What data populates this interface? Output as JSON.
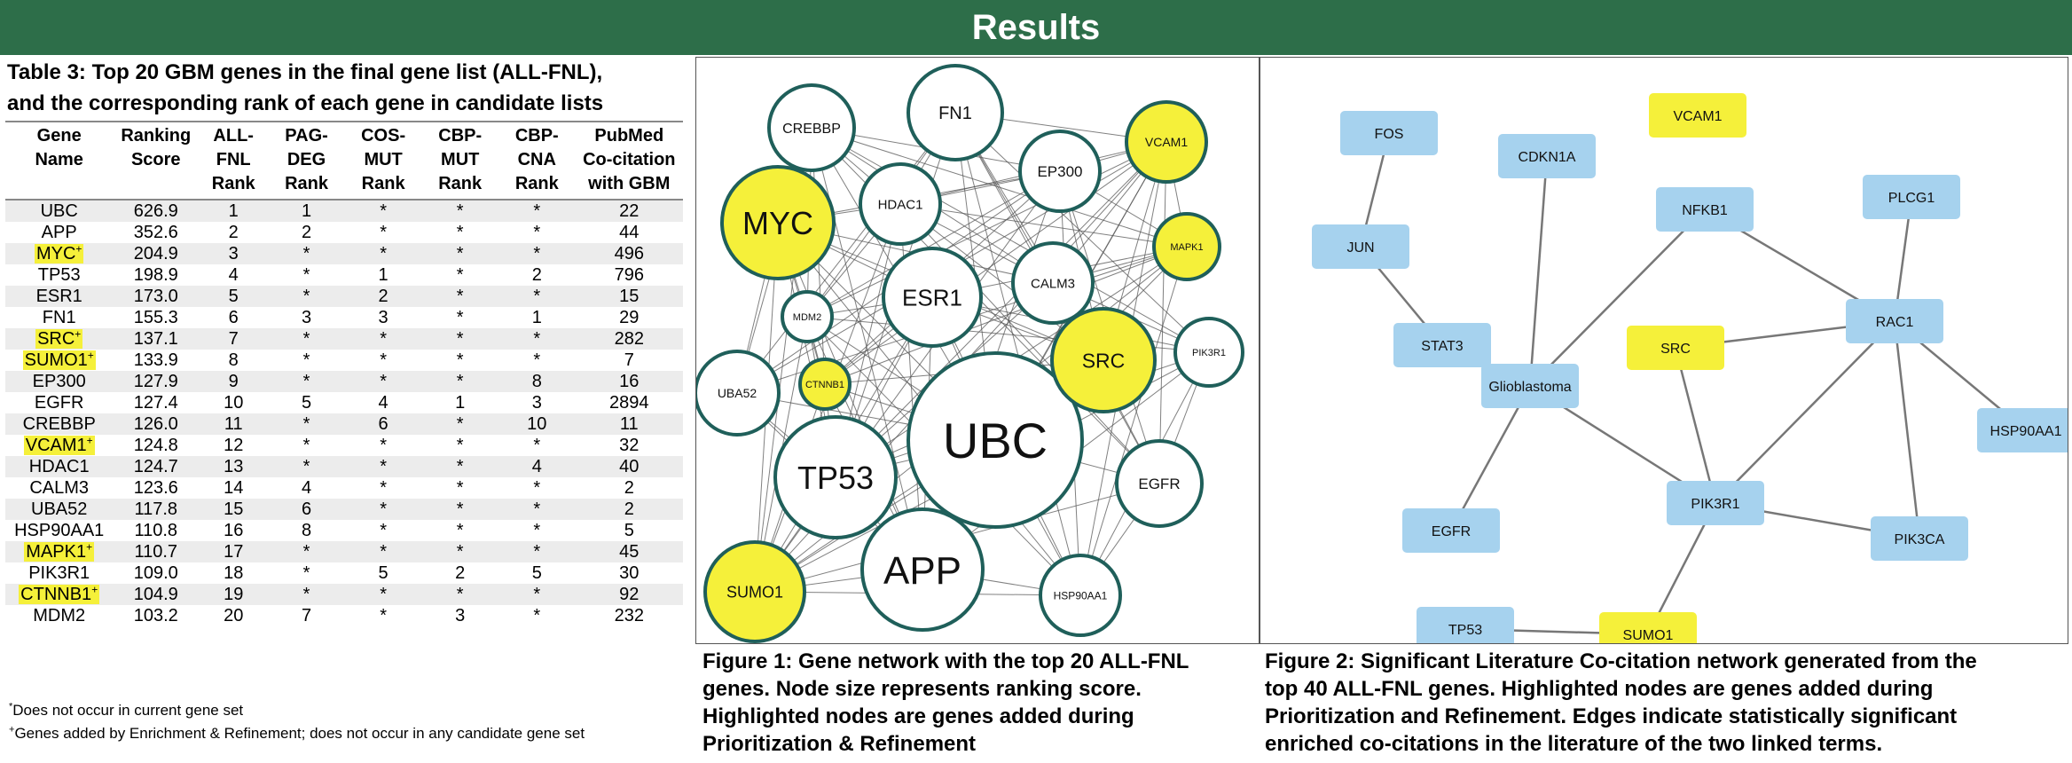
{
  "header": {
    "title": "Results"
  },
  "table": {
    "title_lines": [
      "Table 3: Top 20 GBM genes in the final gene list (ALL-FNL),",
      "and the corresponding rank of each gene in candidate lists"
    ],
    "columns": [
      [
        "Gene",
        "Name"
      ],
      [
        "Ranking",
        "Score"
      ],
      [
        "ALL-",
        "FNL",
        "Rank"
      ],
      [
        "PAG-",
        "DEG",
        "Rank"
      ],
      [
        "COS-",
        "MUT",
        "Rank"
      ],
      [
        "CBP-",
        "MUT",
        "Rank"
      ],
      [
        "CBP-",
        "CNA",
        "Rank"
      ],
      [
        "PubMed",
        "Co-citation",
        "with GBM"
      ]
    ],
    "rows": [
      {
        "gene": "UBC",
        "highlight": false,
        "cells": [
          "626.9",
          "1",
          "1",
          "*",
          "*",
          "*",
          "22"
        ]
      },
      {
        "gene": "APP",
        "highlight": false,
        "cells": [
          "352.6",
          "2",
          "2",
          "*",
          "*",
          "*",
          "44"
        ]
      },
      {
        "gene": "MYC",
        "highlight": true,
        "cells": [
          "204.9",
          "3",
          "*",
          "*",
          "*",
          "*",
          "496"
        ]
      },
      {
        "gene": "TP53",
        "highlight": false,
        "cells": [
          "198.9",
          "4",
          "*",
          "1",
          "*",
          "2",
          "796"
        ]
      },
      {
        "gene": "ESR1",
        "highlight": false,
        "cells": [
          "173.0",
          "5",
          "*",
          "2",
          "*",
          "*",
          "15"
        ]
      },
      {
        "gene": "FN1",
        "highlight": false,
        "cells": [
          "155.3",
          "6",
          "3",
          "3",
          "*",
          "1",
          "29"
        ]
      },
      {
        "gene": "SRC",
        "highlight": true,
        "cells": [
          "137.1",
          "7",
          "*",
          "*",
          "*",
          "*",
          "282"
        ]
      },
      {
        "gene": "SUMO1",
        "highlight": true,
        "cells": [
          "133.9",
          "8",
          "*",
          "*",
          "*",
          "*",
          "7"
        ]
      },
      {
        "gene": "EP300",
        "highlight": false,
        "cells": [
          "127.9",
          "9",
          "*",
          "*",
          "*",
          "8",
          "16"
        ]
      },
      {
        "gene": "EGFR",
        "highlight": false,
        "cells": [
          "127.4",
          "10",
          "5",
          "4",
          "1",
          "3",
          "2894"
        ]
      },
      {
        "gene": "CREBBP",
        "highlight": false,
        "cells": [
          "126.0",
          "11",
          "*",
          "6",
          "*",
          "10",
          "11"
        ]
      },
      {
        "gene": "VCAM1",
        "highlight": true,
        "cells": [
          "124.8",
          "12",
          "*",
          "*",
          "*",
          "*",
          "32"
        ]
      },
      {
        "gene": "HDAC1",
        "highlight": false,
        "cells": [
          "124.7",
          "13",
          "*",
          "*",
          "*",
          "4",
          "40"
        ]
      },
      {
        "gene": "CALM3",
        "highlight": false,
        "cells": [
          "123.6",
          "14",
          "4",
          "*",
          "*",
          "*",
          "2"
        ]
      },
      {
        "gene": "UBA52",
        "highlight": false,
        "cells": [
          "117.8",
          "15",
          "6",
          "*",
          "*",
          "*",
          "2"
        ]
      },
      {
        "gene": "HSP90AA1",
        "highlight": false,
        "cells": [
          "110.8",
          "16",
          "8",
          "*",
          "*",
          "*",
          "5"
        ]
      },
      {
        "gene": "MAPK1",
        "highlight": true,
        "cells": [
          "110.7",
          "17",
          "*",
          "*",
          "*",
          "*",
          "45"
        ]
      },
      {
        "gene": "PIK3R1",
        "highlight": false,
        "cells": [
          "109.0",
          "18",
          "*",
          "5",
          "2",
          "5",
          "30"
        ]
      },
      {
        "gene": "CTNNB1",
        "highlight": true,
        "cells": [
          "104.9",
          "19",
          "*",
          "*",
          "*",
          "*",
          "92"
        ]
      },
      {
        "gene": "MDM2",
        "highlight": false,
        "cells": [
          "103.2",
          "20",
          "7",
          "*",
          "3",
          "*",
          "232"
        ]
      }
    ],
    "highlight_mark": "+",
    "footnote_1_mark": "*",
    "footnote_1": "Does not occur in current gene set",
    "footnote_2_mark": "+",
    "footnote_2": "Genes added by Enrichment & Refinement; does not occur in any candidate gene set"
  },
  "figure1": {
    "caption_lines": [
      "Figure 1: Gene network with the top 20 ALL-FNL",
      "genes. Node size represents ranking score.",
      "Highlighted nodes are genes added during",
      "Prioritization & Refinement"
    ],
    "nodes": [
      {
        "label": "UBC",
        "highlight": false
      },
      {
        "label": "APP",
        "highlight": false
      },
      {
        "label": "MYC",
        "highlight": true
      },
      {
        "label": "TP53",
        "highlight": false
      },
      {
        "label": "ESR1",
        "highlight": false
      },
      {
        "label": "FN1",
        "highlight": false
      },
      {
        "label": "SRC",
        "highlight": true
      },
      {
        "label": "SUMO1",
        "highlight": true
      },
      {
        "label": "EP300",
        "highlight": false
      },
      {
        "label": "EGFR",
        "highlight": false
      },
      {
        "label": "CREBBP",
        "highlight": false
      },
      {
        "label": "VCAM1",
        "highlight": true
      },
      {
        "label": "HDAC1",
        "highlight": false
      },
      {
        "label": "CALM3",
        "highlight": false
      },
      {
        "label": "UBA52",
        "highlight": false
      },
      {
        "label": "HSP90AA1",
        "highlight": false
      },
      {
        "label": "MAPK1",
        "highlight": true
      },
      {
        "label": "PIK3R1",
        "highlight": false
      },
      {
        "label": "CTNNB1",
        "highlight": true
      },
      {
        "label": "MDM2",
        "highlight": false
      }
    ],
    "colors": {
      "highlight_fill": "#f5f03a",
      "node_fill": "#ffffff",
      "node_border": "#1f5f5a",
      "edge": "#555555"
    }
  },
  "figure2": {
    "caption_lines": [
      "Figure 2: Significant Literature Co-citation network generated from the",
      "top 40 ALL-FNL genes. Highlighted nodes are genes added during",
      "Prioritization and Refinement. Edges indicate statistically significant",
      "enriched co-citations in the literature of the two linked terms."
    ],
    "nodes": [
      {
        "label": "FOS",
        "highlight": false
      },
      {
        "label": "JUN",
        "highlight": false
      },
      {
        "label": "STAT3",
        "highlight": false
      },
      {
        "label": "CDKN1A",
        "highlight": false
      },
      {
        "label": "VCAM1",
        "highlight": true
      },
      {
        "label": "NFKB1",
        "highlight": false
      },
      {
        "label": "PLCG1",
        "highlight": false
      },
      {
        "label": "RAC1",
        "highlight": false
      },
      {
        "label": "SRC",
        "highlight": true
      },
      {
        "label": "Glioblastoma",
        "highlight": false
      },
      {
        "label": "HSP90AA1",
        "highlight": false
      },
      {
        "label": "EGFR",
        "highlight": false
      },
      {
        "label": "PIK3R1",
        "highlight": false
      },
      {
        "label": "PIK3CA",
        "highlight": false
      },
      {
        "label": "TP53",
        "highlight": false
      },
      {
        "label": "SUMO1",
        "highlight": true
      }
    ],
    "edges": [
      [
        "FOS",
        "JUN"
      ],
      [
        "JUN",
        "STAT3"
      ],
      [
        "STAT3",
        "Glioblastoma"
      ],
      [
        "CDKN1A",
        "Glioblastoma"
      ],
      [
        "NFKB1",
        "Glioblastoma"
      ],
      [
        "NFKB1",
        "RAC1"
      ],
      [
        "PLCG1",
        "RAC1"
      ],
      [
        "SRC",
        "RAC1"
      ],
      [
        "SRC",
        "PIK3R1"
      ],
      [
        "RAC1",
        "PIK3R1"
      ],
      [
        "RAC1",
        "HSP90AA1"
      ],
      [
        "RAC1",
        "PIK3CA"
      ],
      [
        "Glioblastoma",
        "EGFR"
      ],
      [
        "Glioblastoma",
        "PIK3R1"
      ],
      [
        "PIK3R1",
        "PIK3CA"
      ],
      [
        "PIK3R1",
        "SUMO1"
      ],
      [
        "TP53",
        "SUMO1"
      ]
    ],
    "colors": {
      "highlight_fill": "#f5f03a",
      "node_fill": "#a6d2ee",
      "edge": "#777777"
    }
  }
}
